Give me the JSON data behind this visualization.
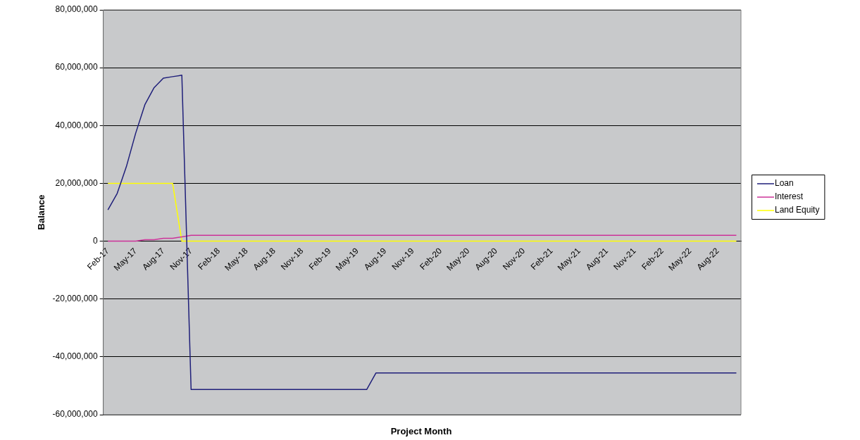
{
  "chart_data": {
    "type": "line",
    "xlabel": "Project Month",
    "ylabel": "Balance",
    "categories": [
      "Feb-17",
      null,
      null,
      "May-17",
      null,
      null,
      "Aug-17",
      null,
      null,
      "Nov-17",
      null,
      null,
      "Feb-18",
      null,
      null,
      "May-18",
      null,
      null,
      "Aug-18",
      null,
      null,
      "Nov-18",
      null,
      null,
      "Feb-19",
      null,
      null,
      "May-19",
      null,
      null,
      "Aug-19",
      null,
      null,
      "Nov-19",
      null,
      null,
      "Feb-20",
      null,
      null,
      "May-20",
      null,
      null,
      "Aug-20",
      null,
      null,
      "Nov-20",
      null,
      null,
      "Feb-21",
      null,
      null,
      "May-21",
      null,
      null,
      "Aug-21",
      null,
      null,
      "Nov-21",
      null,
      null,
      "Feb-22",
      null,
      null,
      "May-22",
      null,
      null,
      "Aug-22",
      null,
      null
    ],
    "series": [
      {
        "name": "Loan",
        "color": "#1f1f7a",
        "values": [
          10800000,
          16500000,
          25800000,
          37300000,
          47200000,
          53100000,
          56400000,
          56900000,
          57400000,
          -51300000,
          -51300000,
          -51300000,
          -51300000,
          -51300000,
          -51300000,
          -51300000,
          -51300000,
          -51300000,
          -51300000,
          -51300000,
          -51300000,
          -51300000,
          -51300000,
          -51300000,
          -51300000,
          -51300000,
          -51300000,
          -51300000,
          -51300000,
          -45600000,
          -45600000,
          -45600000,
          -45600000,
          -45600000,
          -45600000,
          -45600000,
          -45600000,
          -45600000,
          -45600000,
          -45600000,
          -45600000,
          -45600000,
          -45600000,
          -45600000,
          -45600000,
          -45600000,
          -45600000,
          -45600000,
          -45600000,
          -45600000,
          -45600000,
          -45600000,
          -45600000,
          -45600000,
          -45600000,
          -45600000,
          -45600000,
          -45600000,
          -45600000,
          -45600000,
          -45600000,
          -45600000,
          -45600000,
          -45600000,
          -45600000,
          -45600000,
          -45600000,
          -45600000,
          -45600000
        ]
      },
      {
        "name": "Interest",
        "color": "#cc3399",
        "values": [
          0,
          0,
          0,
          0,
          500000,
          500000,
          1000000,
          1000000,
          1500000,
          2000000,
          2000000,
          2000000,
          2000000,
          2000000,
          2000000,
          2000000,
          2000000,
          2000000,
          2000000,
          2000000,
          2000000,
          2000000,
          2000000,
          2000000,
          2000000,
          2000000,
          2000000,
          2000000,
          2000000,
          2000000,
          2000000,
          2000000,
          2000000,
          2000000,
          2000000,
          2000000,
          2000000,
          2000000,
          2000000,
          2000000,
          2000000,
          2000000,
          2000000,
          2000000,
          2000000,
          2000000,
          2000000,
          2000000,
          2000000,
          2000000,
          2000000,
          2000000,
          2000000,
          2000000,
          2000000,
          2000000,
          2000000,
          2000000,
          2000000,
          2000000,
          2000000,
          2000000,
          2000000,
          2000000,
          2000000,
          2000000,
          2000000,
          2000000,
          2000000
        ]
      },
      {
        "name": "Land Equity",
        "color": "#ffff00",
        "values": [
          20000000,
          20000000,
          20000000,
          20000000,
          20000000,
          20000000,
          20000000,
          20000000,
          0,
          0,
          0,
          0,
          0,
          0,
          0,
          0,
          0,
          0,
          0,
          0,
          0,
          0,
          0,
          0,
          0,
          0,
          0,
          0,
          0,
          0,
          0,
          0,
          0,
          0,
          0,
          0,
          0,
          0,
          0,
          0,
          0,
          0,
          0,
          0,
          0,
          0,
          0,
          0,
          0,
          0,
          0,
          0,
          0,
          0,
          0,
          0,
          0,
          0,
          0,
          0,
          0,
          0,
          0,
          0,
          0,
          0,
          0,
          0,
          0
        ]
      }
    ],
    "ylim": [
      -60000000,
      80000000
    ],
    "yticks": [
      {
        "value": -60000000,
        "label": "-60,000,000"
      },
      {
        "value": -40000000,
        "label": "-40,000,000"
      },
      {
        "value": -20000000,
        "label": "-20,000,000"
      },
      {
        "value": 0,
        "label": "0"
      },
      {
        "value": 20000000,
        "label": "20,000,000"
      },
      {
        "value": 40000000,
        "label": "40,000,000"
      },
      {
        "value": 60000000,
        "label": "60,000,000"
      },
      {
        "value": 80000000,
        "label": "80,000,000"
      }
    ],
    "grid": "y",
    "legend": "right",
    "marker": "none",
    "line_style": "solid"
  }
}
